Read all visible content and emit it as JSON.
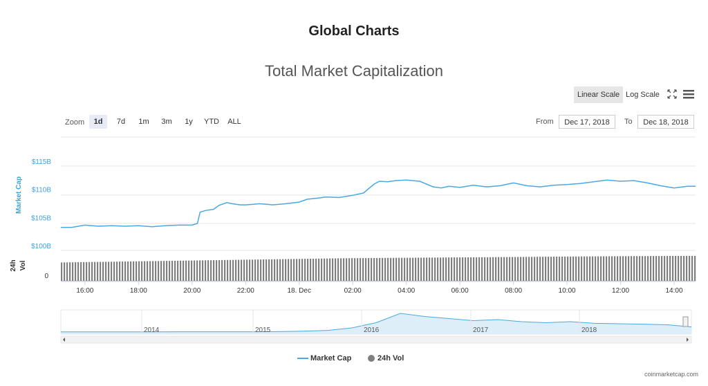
{
  "header": {
    "title": "Global Charts"
  },
  "chart_title": "Total Market Capitalization",
  "scale_buttons": {
    "linear": "Linear Scale",
    "log": "Log Scale",
    "active": "linear"
  },
  "icons": {
    "fullscreen": "expand-icon",
    "menu": "hamburger-menu-icon"
  },
  "zoom": {
    "label": "Zoom",
    "options": [
      "1d",
      "7d",
      "1m",
      "3m",
      "1y",
      "YTD",
      "ALL"
    ],
    "active": "1d"
  },
  "range": {
    "from_label": "From",
    "from_value": "Dec 17, 2018",
    "to_label": "To",
    "to_value": "Dec 18, 2018"
  },
  "legend": {
    "market_cap": "Market Cap",
    "vol": "24h Vol"
  },
  "credit": "coinmarketcap.com",
  "colors": {
    "market_cap": "#4aa8e0",
    "volume": "#7f7f7f",
    "axis_blue": "#3fa1d9",
    "navigator_fill": "#ddeef9"
  },
  "chart_data": {
    "type": "line",
    "title": "Total Market Capitalization",
    "ylabel": "Market Cap",
    "y_ticks": [
      "$100B",
      "$105B",
      "$110B",
      "$115B"
    ],
    "y_tick_values": [
      100,
      105,
      110,
      115
    ],
    "ylim": [
      100,
      120
    ],
    "y_unit": "B USD",
    "x_ticks": [
      "16:00",
      "18:00",
      "20:00",
      "22:00",
      "18. Dec",
      "02:00",
      "04:00",
      "06:00",
      "08:00",
      "10:00",
      "12:00",
      "14:00"
    ],
    "x_range_hours": [
      15.1,
      38.8
    ],
    "x_tick_hours": [
      16,
      18,
      20,
      22,
      24,
      26,
      28,
      30,
      32,
      34,
      36,
      38
    ],
    "series": [
      {
        "name": "Market Cap",
        "x_hours": [
          15.1,
          15.5,
          16.0,
          16.5,
          17.0,
          17.5,
          18.0,
          18.5,
          19.0,
          19.5,
          20.0,
          20.2,
          20.3,
          20.5,
          20.8,
          21.0,
          21.3,
          21.5,
          21.8,
          22.0,
          22.3,
          22.5,
          22.8,
          23.0,
          23.5,
          24.0,
          24.3,
          24.7,
          25.0,
          25.5,
          26.0,
          26.4,
          26.6,
          26.8,
          27.0,
          27.3,
          27.6,
          28.0,
          28.5,
          29.0,
          29.3,
          29.6,
          30.0,
          30.5,
          31.0,
          31.5,
          32.0,
          32.5,
          33.0,
          33.5,
          34.0,
          34.5,
          35.0,
          35.5,
          36.0,
          36.5,
          37.0,
          37.5,
          38.0,
          38.5,
          38.8
        ],
        "values": [
          104.1,
          104.1,
          104.5,
          104.3,
          104.4,
          104.3,
          104.4,
          104.2,
          104.4,
          104.5,
          104.5,
          104.8,
          106.8,
          107.1,
          107.3,
          108.0,
          108.5,
          108.3,
          108.1,
          108.1,
          108.2,
          108.3,
          108.2,
          108.1,
          108.3,
          108.6,
          109.1,
          109.3,
          109.5,
          109.4,
          109.8,
          110.2,
          111.0,
          111.8,
          112.3,
          112.2,
          112.4,
          112.5,
          112.3,
          111.3,
          111.1,
          111.4,
          111.2,
          111.6,
          111.3,
          111.5,
          112.0,
          111.5,
          111.3,
          111.6,
          111.7,
          111.9,
          112.2,
          112.5,
          112.3,
          112.4,
          112.0,
          111.5,
          111.1,
          111.4,
          111.4
        ]
      },
      {
        "name": "24h Vol",
        "type": "bar",
        "note_axis": "24h Vol",
        "y_ticks": [
          "0"
        ],
        "values_relative_trend": [
          0.7,
          0.74,
          0.78,
          0.82,
          0.86,
          0.88,
          0.9,
          0.92,
          0.94,
          0.95
        ]
      }
    ],
    "navigator": {
      "x_ticks": [
        "2014",
        "2015",
        "2016",
        "2017",
        "2018"
      ],
      "values": [
        0.01,
        0.01,
        0.01,
        0.01,
        0.01,
        0.012,
        0.012,
        0.013,
        0.015,
        0.02,
        0.04,
        0.08,
        0.2,
        0.45,
        0.9,
        0.75,
        0.65,
        0.55,
        0.6,
        0.5,
        0.45,
        0.5,
        0.42,
        0.4,
        0.38,
        0.35,
        0.25
      ]
    }
  }
}
